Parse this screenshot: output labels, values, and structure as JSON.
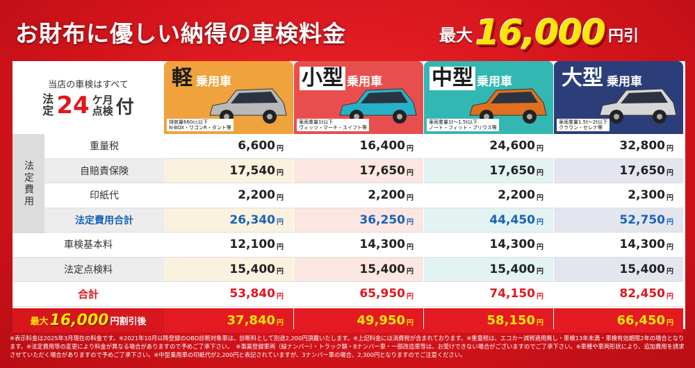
{
  "header": {
    "title": "お財布に優しい納得の車検料金",
    "promo_prefix": "最大",
    "promo_amount": "16,000",
    "promo_suffix": "円引"
  },
  "corner": {
    "line1": "当店の車検はすべて",
    "hotei_1": "法",
    "hotei_2": "定",
    "number": "24",
    "ka": "ケ",
    "tsuki": "月",
    "ten": "点",
    "ken": "検",
    "tsuki_big": "付"
  },
  "cars": [
    {
      "big": "軽",
      "small": "乗用車",
      "spec1": "排気量660cc以下",
      "spec2": "N-BOX・ワゴンR・タント等",
      "color": "#f0a23c",
      "big_color": "#1a1a1a",
      "big_bg": "#f0a23c",
      "body": "#b9b9b9",
      "light": "#fbf1df"
    },
    {
      "big": "小型",
      "small": "乗用車",
      "spec1": "車両重量1t以下",
      "spec2": "ヴィッツ・マーチ・スイフト等",
      "color": "#e94e4e",
      "big_color": "#1a1a1a",
      "big_bg": "#ffffff",
      "body": "#27b1c9",
      "light": "#fbe6e2"
    },
    {
      "big": "中型",
      "small": "乗用車",
      "spec1": "車両重量1t〜1.5t以下",
      "spec2": "ノート・フィット・プリウス等",
      "color": "#33b7b3",
      "big_color": "#1a1a1a",
      "big_bg": "#ffffff",
      "body": "#e07020",
      "light": "#e2f3f2"
    },
    {
      "big": "大型",
      "small": "乗用車",
      "spec1": "車両重量1.5t〜2t以下",
      "spec2": "クラウン・セレナ等",
      "color": "#2b3e7a",
      "big_color": "#ffffff",
      "big_bg": "#2b3e7a",
      "body": "#d6d6d6",
      "light": "#e4e6ef"
    }
  ],
  "side_label": "法定費用",
  "yen": "円",
  "rows": [
    {
      "label": "重量税",
      "values": [
        "6,600",
        "16,400",
        "24,600",
        "32,800"
      ],
      "type": "fee",
      "shade": false
    },
    {
      "label": "自賠責保険",
      "values": [
        "17,540",
        "17,650",
        "17,650",
        "17,650"
      ],
      "type": "fee",
      "shade": true
    },
    {
      "label": "印紙代",
      "values": [
        "2,200",
        "2,200",
        "2,200",
        "2,300"
      ],
      "type": "fee",
      "shade": false
    },
    {
      "label": "法定費用合計",
      "values": [
        "26,340",
        "36,250",
        "44,450",
        "52,750"
      ],
      "type": "subtotal",
      "shade": true
    },
    {
      "label": "車検基本料",
      "values": [
        "12,100",
        "14,300",
        "14,300",
        "14,300"
      ],
      "type": "plain",
      "shade": false
    },
    {
      "label": "法定点検料",
      "values": [
        "15,400",
        "15,400",
        "15,400",
        "15,400"
      ],
      "type": "plain",
      "shade": true
    },
    {
      "label": "合計",
      "values": [
        "53,840",
        "65,950",
        "74,150",
        "82,450"
      ],
      "type": "total",
      "shade": false
    }
  ],
  "discount_row": {
    "prefix": "最大",
    "amount": "16,000",
    "suffix": "円割引後",
    "values": [
      "37,840",
      "49,950",
      "58,150",
      "66,450"
    ]
  },
  "notes": "※表示料金は2025年3月現在の料金です。※2021年10月以降登録のOBD診断対象車は、診断料として別途2,200円頂戴いたします。※上記料金には消費税が含まれております。※重量税は、エコカー減税適用無し・車検13年未満・車検有効期限2年の場合となります。※法定費用等の変更により料金が異なる場合がありますので予めご了承下さい。　※事業登録車両（緑ナンバー）・トラック類・8ナンバー車・一部改造車等は、お受けできない場合がございますのでご了承下さい。※車種や車両形状により、追加費用を請求させていただく場合がありますので予めご了承下さい。※中型乗用車の印紙代が2,200円と表記されていますが、3ナンバー車の場合、2,300円となりますのでご注意ください。"
}
